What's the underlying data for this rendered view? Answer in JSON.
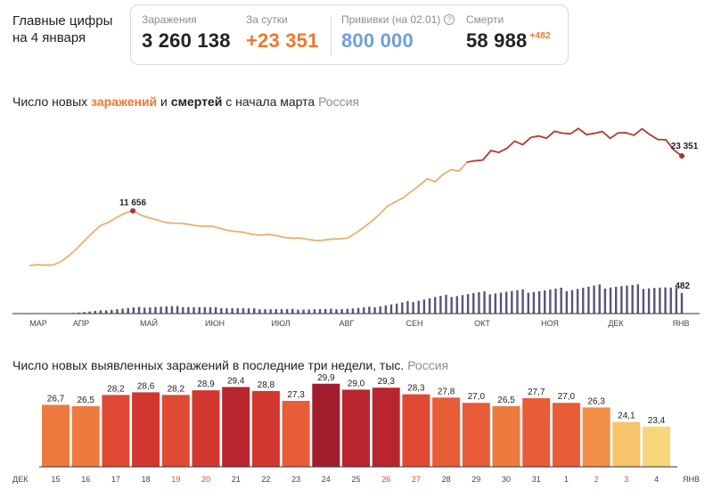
{
  "header": {
    "title_line1": "Главные цифры",
    "title_line2": "на 4 января"
  },
  "stats": {
    "infections": {
      "label": "Заражения",
      "value": "3 260 138"
    },
    "daily": {
      "label": "За сутки",
      "value": "+23 351"
    },
    "vaccinations": {
      "label": "Прививки (на 02.01)",
      "value": "800 000",
      "icon": "question-icon"
    },
    "deaths": {
      "label": "Смерти",
      "value": "58 988",
      "delta": "+482"
    }
  },
  "colors": {
    "orange": "#f0772b",
    "blue": "#6f9fd8",
    "line_light": "#e8b070",
    "line_dark": "#b23a2e",
    "deaths_bars": "#55557a"
  },
  "chart_data": [
    {
      "type": "line",
      "title_parts": [
        "Число новых ",
        "заражений",
        " и ",
        "смертей",
        " с начала марта"
      ],
      "region": "Россия",
      "x_ticks": [
        "МАР",
        "АПР",
        "МАЙ",
        "ИЮН",
        "ИЮЛ",
        "АВГ",
        "СЕН",
        "ОКТ",
        "НОЯ",
        "ДЕК",
        "ЯНВ"
      ],
      "peak_label": "11 656",
      "last_label": "23 351",
      "deaths_last_label": "482",
      "ylim": [
        0,
        30000
      ],
      "series": [
        {
          "values": [
            0,
            30,
            90,
            250,
            800,
            2000,
            3800,
            5500,
            7000,
            8500,
            9400,
            10300,
            11000,
            11656,
            10900,
            10100,
            9600,
            9300,
            9100,
            8900,
            8700,
            8600,
            8400,
            8200,
            7900,
            7600,
            7200,
            6900,
            6700,
            6600,
            6500,
            6300,
            6100,
            5900,
            5700,
            5550,
            5450,
            5400,
            5500,
            5700,
            6000,
            6800,
            8000,
            9500,
            11000,
            12500,
            13500,
            14600,
            15800,
            16900,
            17800,
            18500,
            19300,
            20000,
            20800,
            21500,
            22300,
            23000,
            23800,
            24500,
            25100,
            25900,
            26400,
            27000,
            27300,
            27800,
            28000,
            28300,
            28500,
            28500,
            28400,
            28200,
            28000,
            27800,
            27900,
            28100,
            28400,
            28500,
            28100,
            27200,
            26100,
            25200,
            23351
          ]
        },
        {
          "values": [
            0,
            0,
            1,
            2,
            5,
            10,
            20,
            35,
            50,
            65,
            80,
            95,
            110,
            125,
            135,
            140,
            145,
            150,
            152,
            150,
            145,
            140,
            135,
            130,
            125,
            120,
            115,
            110,
            105,
            100,
            97,
            95,
            93,
            92,
            91,
            91,
            92,
            94,
            97,
            100,
            105,
            112,
            125,
            140,
            160,
            185,
            205,
            230,
            260,
            290,
            320,
            345,
            365,
            385,
            400,
            415,
            430,
            440,
            450,
            460,
            468,
            474,
            480,
            487,
            492,
            497,
            505,
            515,
            530,
            545,
            560,
            570,
            580,
            590,
            590,
            585,
            580,
            575,
            570,
            560,
            545,
            520,
            482
          ]
        }
      ]
    },
    {
      "type": "bar",
      "title": "Число новых выявленных заражений в последние три недели, тыс.",
      "region": "Россия",
      "start_label": "ДЕК",
      "end_label": "ЯНВ",
      "categories": [
        "15",
        "16",
        "17",
        "18",
        "19",
        "20",
        "21",
        "22",
        "23",
        "24",
        "25",
        "26",
        "27",
        "28",
        "29",
        "30",
        "31",
        "1",
        "2",
        "3",
        "4"
      ],
      "holiday_categories": [
        "19",
        "20",
        "26",
        "27",
        "2",
        "3"
      ],
      "values": [
        26.7,
        26.5,
        28.2,
        28.6,
        28.2,
        28.9,
        29.4,
        28.8,
        27.3,
        29.9,
        29.0,
        29.3,
        28.3,
        27.8,
        27.0,
        26.5,
        27.7,
        27.0,
        26.3,
        24.1,
        23.4
      ],
      "value_labels": [
        "26,7",
        "26,5",
        "28,2",
        "28,6",
        "28,2",
        "28,9",
        "29,4",
        "28,8",
        "27,3",
        "29,9",
        "29,0",
        "29,3",
        "28,3",
        "27,8",
        "27,0",
        "26,5",
        "27,7",
        "27,0",
        "26,3",
        "24,1",
        "23,4"
      ],
      "ylim": [
        0,
        30
      ]
    }
  ]
}
